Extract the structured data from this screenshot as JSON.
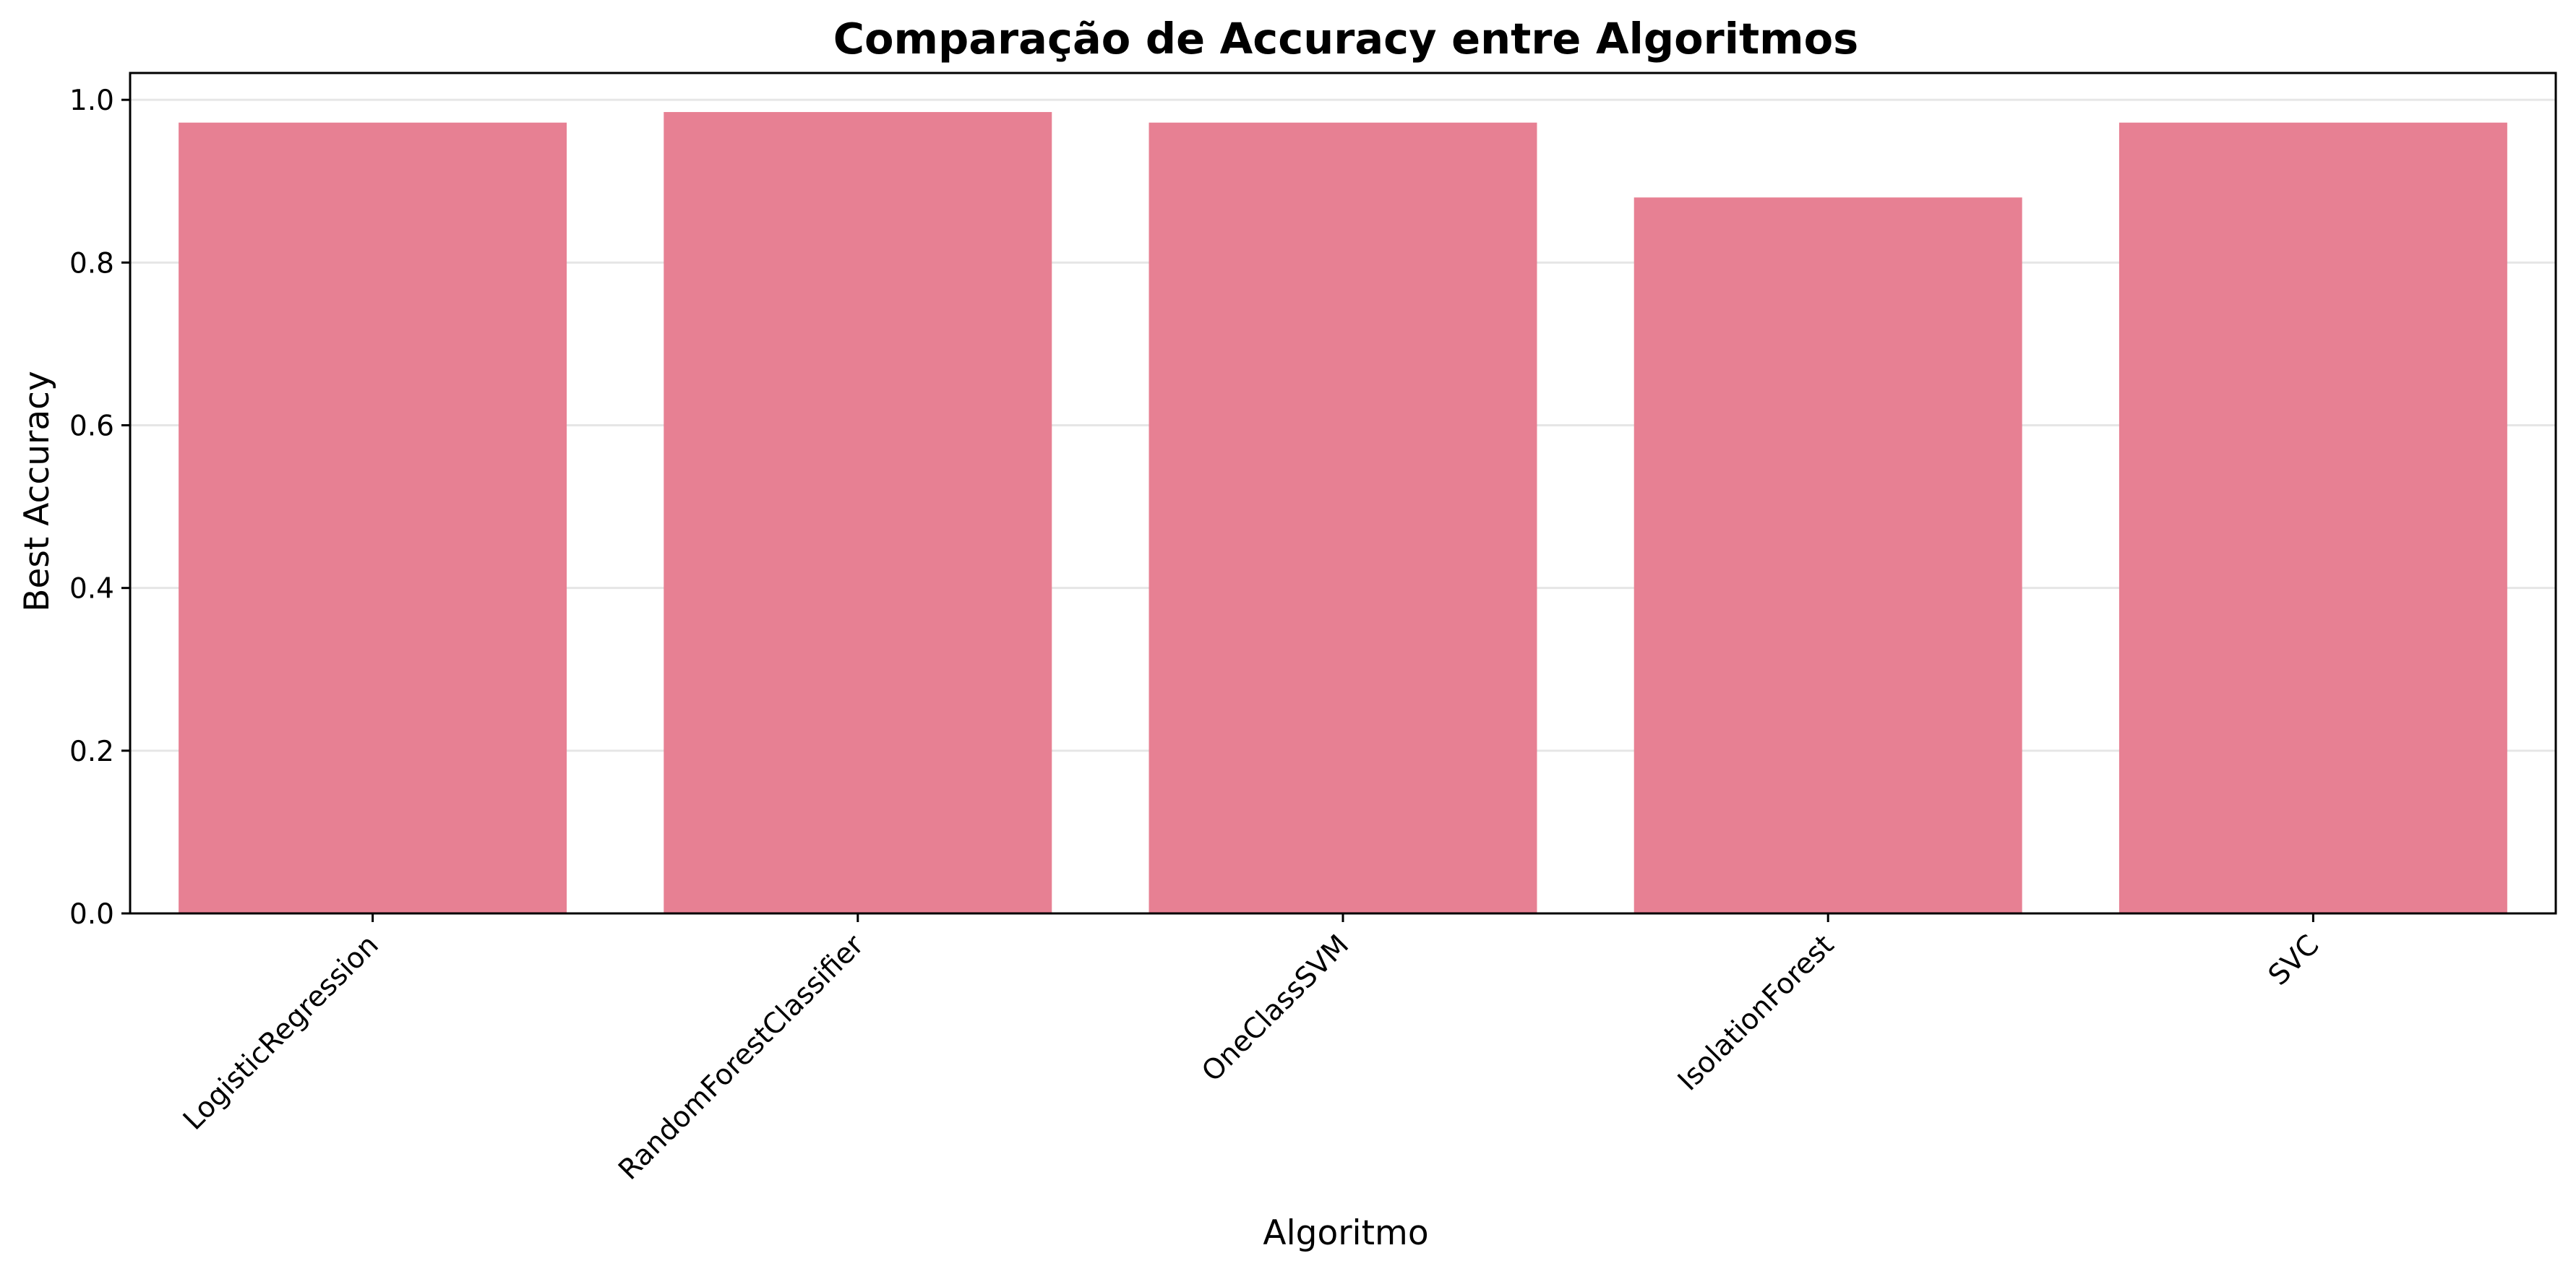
{
  "chart_data": {
    "type": "bar",
    "title": "Comparação de Accuracy entre Algoritmos",
    "xlabel": "Algoritmo",
    "ylabel": "Best Accuracy",
    "categories": [
      "LogisticRegression",
      "RandomForestClassifier",
      "OneClassSVM",
      "IsolationForest",
      "SVC"
    ],
    "values": [
      0.972,
      0.985,
      0.972,
      0.88,
      0.972
    ],
    "ylim": [
      0,
      1.033
    ],
    "yticks": [
      0.0,
      0.2,
      0.4,
      0.6,
      0.8,
      1.0
    ],
    "ytick_labels": [
      "0.0",
      "0.2",
      "0.4",
      "0.6",
      "0.8",
      "1.0"
    ],
    "grid": "horizontal",
    "bar_color": "#e78093",
    "grid_color": "#e6e6e6",
    "axis_color": "#000000"
  }
}
